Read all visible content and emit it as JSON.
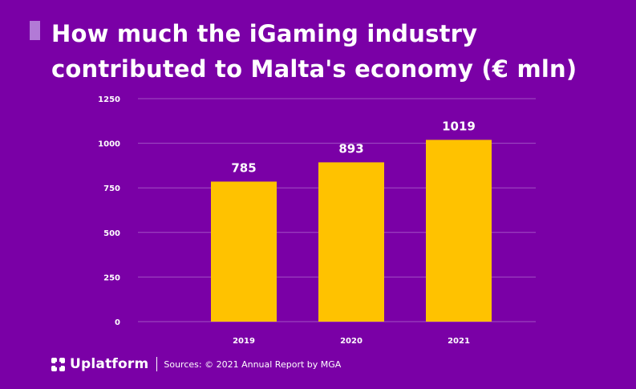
{
  "title": "How much the iGaming industry contributed to Malta's economy (€ mln)",
  "colors": {
    "background": "#7a00a6",
    "bar": "#ffc200",
    "grid": "#a24fc4",
    "text": "#ffffff",
    "accent": "#b27ad6"
  },
  "chart_data": {
    "type": "bar",
    "title": "How much the iGaming industry contributed to Malta's economy (€ mln)",
    "categories": [
      "2019",
      "2020",
      "2021"
    ],
    "values": [
      785,
      893,
      1019
    ],
    "data_labels": [
      "785",
      "893",
      "1019"
    ],
    "yticks": [
      0,
      250,
      500,
      750,
      1000,
      1250
    ],
    "ytick_labels": [
      "0",
      "250",
      "500",
      "750",
      "1000",
      "1250"
    ],
    "ylim": [
      0,
      1250
    ],
    "xlabel": "",
    "ylabel": "",
    "grid": true,
    "legend": "none"
  },
  "footer": {
    "brand": "Uplatform",
    "brand_icon": "uplatform-logo-icon",
    "source": "Sources: © 2021 Annual Report by MGA"
  }
}
